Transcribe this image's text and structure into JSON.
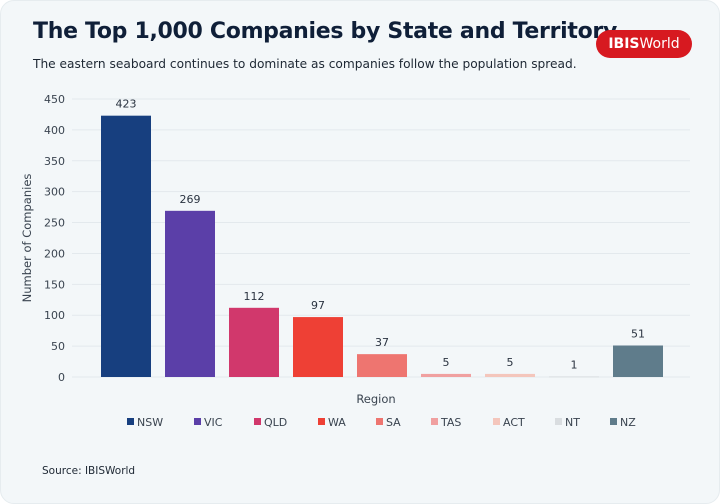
{
  "header": {
    "title": "The Top 1,000 Companies by State and Territory",
    "subtitle": "The eastern seaboard continues to dominate as companies follow the population spread.",
    "logo_text": "IBISWorld"
  },
  "footer": {
    "source": "Source: IBISWorld"
  },
  "chart_data": {
    "type": "bar",
    "title": "The Top 1,000 Companies by State and Territory",
    "xlabel": "Region",
    "ylabel": "Number of Companies",
    "ylim": [
      0,
      450
    ],
    "yticks": [
      0,
      50,
      100,
      150,
      200,
      250,
      300,
      350,
      400,
      450
    ],
    "grid": true,
    "legend": "bottom",
    "categories": [
      "NSW",
      "VIC",
      "QLD",
      "WA",
      "SA",
      "TAS",
      "ACT",
      "NT",
      "NZ"
    ],
    "values": [
      423,
      269,
      112,
      97,
      37,
      5,
      5,
      1,
      51
    ],
    "colors": [
      "#173f7f",
      "#5b3fa8",
      "#d1386c",
      "#ee4035",
      "#ee7570",
      "#f0a0a0",
      "#f4c6bc",
      "#d9dde0",
      "#5f7c8b"
    ]
  }
}
